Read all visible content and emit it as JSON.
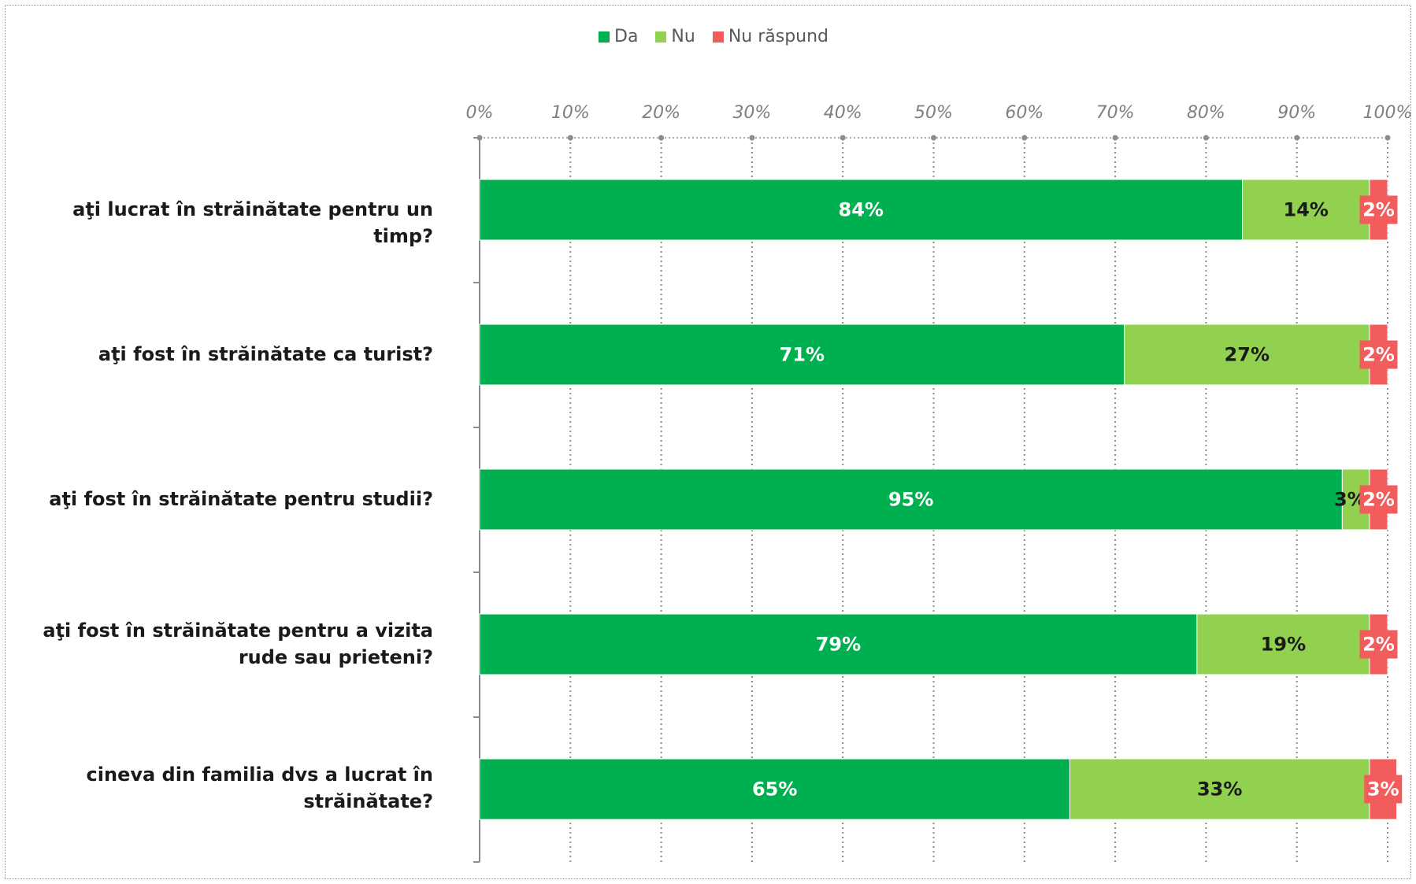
{
  "chart_data": {
    "type": "bar",
    "orientation": "horizontal",
    "stacked": true,
    "axis_position": "top",
    "xlim": [
      0,
      100
    ],
    "xticks": [
      "0%",
      "10%",
      "20%",
      "30%",
      "40%",
      "50%",
      "60%",
      "70%",
      "80%",
      "90%",
      "100%"
    ],
    "grid": true,
    "legend_placement": "top",
    "categories": [
      "aţi lucrat în străinătate pentru un timp?",
      "aţi fost în străinătate ca turist?",
      "aţi fost în străinătate pentru studii?",
      "aţi fost în străinătate pentru a vizita rude sau prieteni?",
      "cineva din familia dvs a lucrat în străinătate?"
    ],
    "series": [
      {
        "name": "Da",
        "color": "#00b050",
        "values": [
          84,
          71,
          95,
          79,
          65
        ],
        "labels": [
          "84%",
          "71%",
          "95%",
          "79%",
          "65%"
        ]
      },
      {
        "name": "Nu",
        "color": "#92d050",
        "values": [
          14,
          27,
          3,
          19,
          33
        ],
        "labels": [
          "14%",
          "27%",
          "3%",
          "19%",
          "33%"
        ]
      },
      {
        "name": "Nu răspund",
        "color": "#f25c5c",
        "values": [
          2,
          2,
          2,
          2,
          3
        ],
        "labels": [
          "2%",
          "2%",
          "2%",
          "2%",
          "3%"
        ]
      }
    ]
  }
}
